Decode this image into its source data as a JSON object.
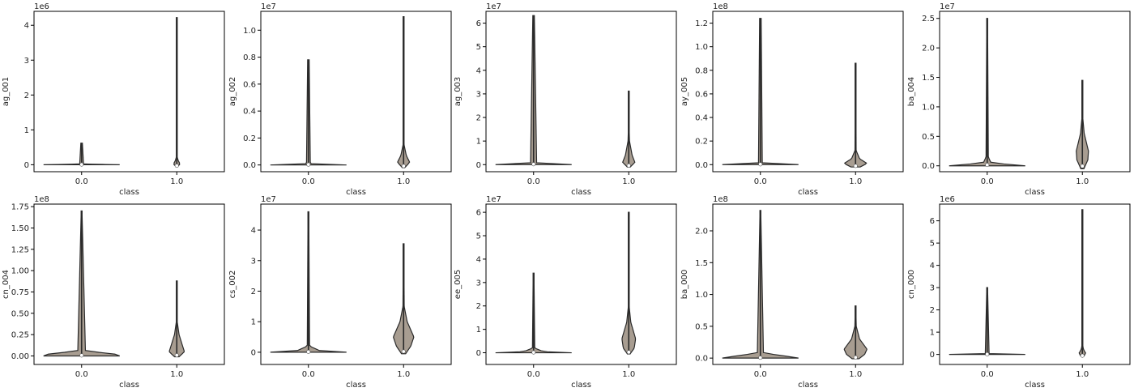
{
  "colors": {
    "violin_fill": "#a89d91",
    "violin_edge": "#2a2a2a",
    "frame": "#000000",
    "median_dot": "#ffffff"
  },
  "chart_data": [
    {
      "type": "violin",
      "xlabel": "class",
      "ylabel": "ag_001",
      "offset_text": "1e6",
      "categories": [
        "0.0",
        "1.0"
      ],
      "yticks": [
        "0",
        "1",
        "2",
        "3",
        "4"
      ],
      "tick_values": [
        0,
        1,
        2,
        3,
        4
      ],
      "ylim": [
        -0.2,
        4.4
      ],
      "violins": [
        {
          "min": 0,
          "max": 0.62,
          "width": 1.0,
          "dist": [
            [
              0,
              1
            ],
            [
              0.02,
              0.05
            ],
            [
              0.62,
              0.02
            ]
          ]
        },
        {
          "min": -0.05,
          "max": 4.22,
          "width": 0.09,
          "dist": [
            [
              -0.05,
              0.2
            ],
            [
              0.02,
              1
            ],
            [
              0.1,
              0.5
            ],
            [
              0.22,
              0.1
            ],
            [
              4.22,
              0.02
            ]
          ]
        }
      ]
    },
    {
      "type": "violin",
      "xlabel": "class",
      "ylabel": "ag_002",
      "offset_text": "1e7",
      "categories": [
        "0.0",
        "1.0"
      ],
      "yticks": [
        "0.0",
        "0.2",
        "0.4",
        "0.6",
        "0.8",
        "1.0"
      ],
      "tick_values": [
        0,
        0.2,
        0.4,
        0.6,
        0.8,
        1.0
      ],
      "ylim": [
        -0.05,
        1.14
      ],
      "violins": [
        {
          "min": 0,
          "max": 0.78,
          "width": 1.0,
          "dist": [
            [
              0,
              1
            ],
            [
              0.01,
              0.05
            ],
            [
              0.78,
              0.02
            ]
          ]
        },
        {
          "min": -0.02,
          "max": 1.1,
          "width": 0.16,
          "dist": [
            [
              -0.02,
              0.2
            ],
            [
              0.02,
              1
            ],
            [
              0.07,
              0.45
            ],
            [
              0.15,
              0.08
            ],
            [
              1.1,
              0.02
            ]
          ]
        }
      ]
    },
    {
      "type": "violin",
      "xlabel": "class",
      "ylabel": "ag_003",
      "offset_text": "1e7",
      "categories": [
        "0.0",
        "1.0"
      ],
      "yticks": [
        "0",
        "1",
        "2",
        "3",
        "4",
        "5",
        "6"
      ],
      "tick_values": [
        0,
        1,
        2,
        3,
        4,
        5,
        6
      ],
      "ylim": [
        -0.3,
        6.5
      ],
      "violins": [
        {
          "min": 0,
          "max": 6.32,
          "width": 1.0,
          "dist": [
            [
              0,
              1
            ],
            [
              0.06,
              0.08
            ],
            [
              6.32,
              0.02
            ]
          ]
        },
        {
          "min": -0.1,
          "max": 3.12,
          "width": 0.16,
          "dist": [
            [
              -0.1,
              0.25
            ],
            [
              0.1,
              1
            ],
            [
              0.4,
              0.55
            ],
            [
              1.0,
              0.12
            ],
            [
              1.7,
              0.04
            ],
            [
              3.12,
              0.02
            ]
          ]
        }
      ]
    },
    {
      "type": "violin",
      "xlabel": "class",
      "ylabel": "ay_005",
      "offset_text": "1e8",
      "categories": [
        "0.0",
        "1.0"
      ],
      "yticks": [
        "0.0",
        "0.2",
        "0.4",
        "0.6",
        "0.8",
        "1.0",
        "1.2"
      ],
      "tick_values": [
        0,
        0.2,
        0.4,
        0.6,
        0.8,
        1.0,
        1.2
      ],
      "ylim": [
        -0.06,
        1.3
      ],
      "violins": [
        {
          "min": 0,
          "max": 1.24,
          "width": 1.0,
          "dist": [
            [
              0,
              1
            ],
            [
              0.01,
              0.05
            ],
            [
              1.24,
              0.02
            ]
          ]
        },
        {
          "min": -0.02,
          "max": 0.86,
          "width": 0.3,
          "dist": [
            [
              -0.02,
              0.4
            ],
            [
              0.01,
              1
            ],
            [
              0.05,
              0.35
            ],
            [
              0.12,
              0.05
            ],
            [
              0.86,
              0.02
            ]
          ]
        }
      ]
    },
    {
      "type": "violin",
      "xlabel": "class",
      "ylabel": "ba_004",
      "offset_text": "1e7",
      "categories": [
        "0.0",
        "1.0"
      ],
      "yticks": [
        "0.0",
        "0.5",
        "1.0",
        "1.5",
        "2.0",
        "2.5"
      ],
      "tick_values": [
        0,
        0.5,
        1.0,
        1.5,
        2.0,
        2.5
      ],
      "ylim": [
        -0.1,
        2.62
      ],
      "violins": [
        {
          "min": 0,
          "max": 2.5,
          "width": 1.0,
          "dist": [
            [
              0,
              1
            ],
            [
              0.05,
              0.1
            ],
            [
              0.15,
              0.03
            ],
            [
              2.5,
              0.01
            ]
          ]
        },
        {
          "min": -0.05,
          "max": 1.45,
          "width": 0.16,
          "dist": [
            [
              -0.05,
              0.25
            ],
            [
              0.1,
              0.9
            ],
            [
              0.25,
              1
            ],
            [
              0.55,
              0.3
            ],
            [
              0.8,
              0.08
            ],
            [
              1.45,
              0.02
            ]
          ]
        }
      ]
    },
    {
      "type": "violin",
      "xlabel": "class",
      "ylabel": "cn_004",
      "offset_text": "1e8",
      "categories": [
        "0.0",
        "1.0"
      ],
      "yticks": [
        "0.00",
        "0.25",
        "0.50",
        "0.75",
        "1.00",
        "1.25",
        "1.50",
        "1.75"
      ],
      "tick_values": [
        0,
        0.25,
        0.5,
        0.75,
        1.0,
        1.25,
        1.5,
        1.75
      ],
      "ylim": [
        -0.1,
        1.78
      ],
      "violins": [
        {
          "min": 0,
          "max": 1.7,
          "width": 1.0,
          "dist": [
            [
              0,
              1
            ],
            [
              0.02,
              0.9
            ],
            [
              0.06,
              0.1
            ],
            [
              1.7,
              0.01
            ]
          ]
        },
        {
          "min": -0.01,
          "max": 0.88,
          "width": 0.2,
          "dist": [
            [
              -0.01,
              0.3
            ],
            [
              0.05,
              1
            ],
            [
              0.12,
              0.75
            ],
            [
              0.25,
              0.3
            ],
            [
              0.4,
              0.06
            ],
            [
              0.88,
              0.02
            ]
          ]
        }
      ]
    },
    {
      "type": "violin",
      "xlabel": "class",
      "ylabel": "cs_002",
      "offset_text": "1e7",
      "categories": [
        "0.0",
        "1.0"
      ],
      "yticks": [
        "0",
        "1",
        "2",
        "3",
        "4"
      ],
      "tick_values": [
        0,
        1,
        2,
        3,
        4
      ],
      "ylim": [
        -0.4,
        4.85
      ],
      "violins": [
        {
          "min": 0,
          "max": 4.6,
          "width": 1.0,
          "dist": [
            [
              0,
              1
            ],
            [
              0.05,
              0.3
            ],
            [
              0.2,
              0.03
            ],
            [
              4.6,
              0.01
            ]
          ]
        },
        {
          "min": -0.05,
          "max": 3.55,
          "width": 0.27,
          "dist": [
            [
              -0.05,
              0.2
            ],
            [
              0.2,
              0.7
            ],
            [
              0.5,
              1
            ],
            [
              1.0,
              0.35
            ],
            [
              1.5,
              0.06
            ],
            [
              3.55,
              0.02
            ]
          ]
        }
      ]
    },
    {
      "type": "violin",
      "xlabel": "class",
      "ylabel": "ee_005",
      "offset_text": "1e7",
      "categories": [
        "0.0",
        "1.0"
      ],
      "yticks": [
        "0",
        "1",
        "2",
        "3",
        "4",
        "5",
        "6"
      ],
      "tick_values": [
        0,
        1,
        2,
        3,
        4,
        5,
        6
      ],
      "ylim": [
        -0.5,
        6.35
      ],
      "violins": [
        {
          "min": 0,
          "max": 3.4,
          "width": 1.0,
          "dist": [
            [
              0,
              1
            ],
            [
              0.05,
              0.25
            ],
            [
              0.2,
              0.03
            ],
            [
              3.4,
              0.01
            ]
          ]
        },
        {
          "min": -0.05,
          "max": 6.0,
          "width": 0.18,
          "dist": [
            [
              -0.05,
              0.2
            ],
            [
              0.2,
              0.8
            ],
            [
              0.6,
              1
            ],
            [
              1.3,
              0.3
            ],
            [
              2.0,
              0.05
            ],
            [
              6.0,
              0.01
            ]
          ]
        }
      ]
    },
    {
      "type": "violin",
      "xlabel": "class",
      "ylabel": "ba_000",
      "offset_text": "1e8",
      "categories": [
        "0.0",
        "1.0"
      ],
      "yticks": [
        "0.0",
        "0.5",
        "1.0",
        "1.5",
        "2.0"
      ],
      "tick_values": [
        0,
        0.5,
        1.0,
        1.5,
        2.0
      ],
      "ylim": [
        -0.1,
        2.42
      ],
      "violins": [
        {
          "min": 0,
          "max": 2.32,
          "width": 1.0,
          "dist": [
            [
              0,
              1
            ],
            [
              0.02,
              0.8
            ],
            [
              0.08,
              0.08
            ],
            [
              2.32,
              0.01
            ]
          ]
        },
        {
          "min": -0.01,
          "max": 0.82,
          "width": 0.3,
          "dist": [
            [
              -0.01,
              0.3
            ],
            [
              0.06,
              0.8
            ],
            [
              0.14,
              1
            ],
            [
              0.3,
              0.35
            ],
            [
              0.5,
              0.06
            ],
            [
              0.82,
              0.02
            ]
          ]
        }
      ]
    },
    {
      "type": "violin",
      "xlabel": "class",
      "ylabel": "cn_000",
      "offset_text": "1e6",
      "categories": [
        "0.0",
        "1.0"
      ],
      "yticks": [
        "0",
        "1",
        "2",
        "3",
        "4",
        "5",
        "6"
      ],
      "tick_values": [
        0,
        1,
        2,
        3,
        4,
        5,
        6
      ],
      "ylim": [
        -0.45,
        6.75
      ],
      "violins": [
        {
          "min": 0,
          "max": 3.0,
          "width": 1.0,
          "dist": [
            [
              0,
              1
            ],
            [
              0.02,
              0.05
            ],
            [
              3.0,
              0.01
            ]
          ]
        },
        {
          "min": -0.1,
          "max": 6.5,
          "width": 0.09,
          "dist": [
            [
              -0.1,
              0.3
            ],
            [
              0.05,
              1
            ],
            [
              0.2,
              0.4
            ],
            [
              0.4,
              0.06
            ],
            [
              6.5,
              0.01
            ]
          ]
        }
      ]
    }
  ]
}
